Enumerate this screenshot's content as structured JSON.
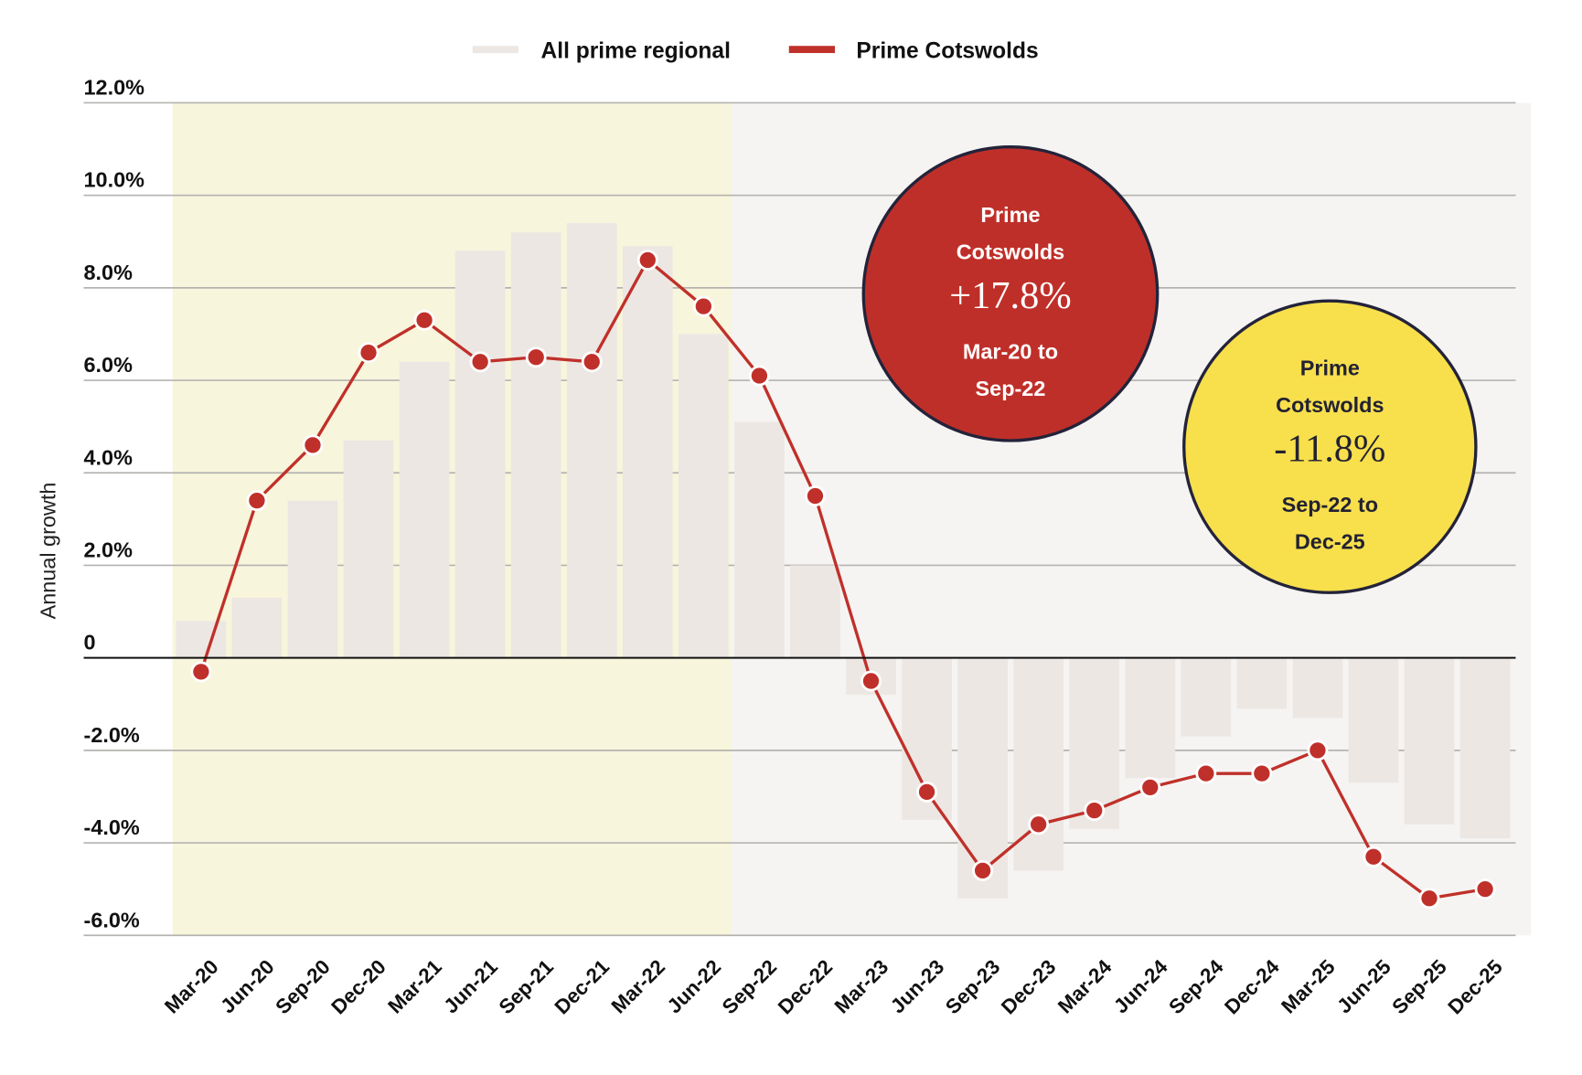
{
  "chart_data": {
    "type": "bar+line",
    "title": "",
    "xlabel": "",
    "ylabel": "Annual growth",
    "ylim": [
      -6,
      12
    ],
    "y_ticks": [
      12,
      10,
      8,
      6,
      4,
      2,
      0,
      -2,
      -4,
      -6
    ],
    "y_tick_labels": [
      "12.0%",
      "10.0%",
      "8.0%",
      "6.0%",
      "4.0%",
      "2.0%",
      "0",
      "-2.0%",
      "-4.0%",
      "-6.0%"
    ],
    "grid": true,
    "legend_position": "top-center",
    "categories": [
      "Mar-20",
      "Jun-20",
      "Sep-20",
      "Dec-20",
      "Mar-21",
      "Jun-21",
      "Sep-21",
      "Dec-21",
      "Mar-22",
      "Jun-22",
      "Sep-22",
      "Dec-22",
      "Mar-23",
      "Jun-23",
      "Sep-23",
      "Dec-23",
      "Mar-24",
      "Jun-24",
      "Sep-24",
      "Dec-24",
      "Mar-25",
      "Jun-25",
      "Sep-25",
      "Dec-25"
    ],
    "series": [
      {
        "name": "All prime regional",
        "type": "bar",
        "color": "#ece7e3",
        "values": [
          0.8,
          1.3,
          3.4,
          4.7,
          6.4,
          8.8,
          9.2,
          9.4,
          8.9,
          7.0,
          5.1,
          2.0,
          -0.8,
          -3.5,
          -5.2,
          -4.6,
          -3.7,
          -2.6,
          -1.7,
          -1.1,
          -1.3,
          -2.7,
          -3.6,
          -3.9
        ]
      },
      {
        "name": "Prime Cotswolds",
        "type": "line",
        "color": "#c0302a",
        "values": [
          -0.3,
          3.4,
          4.6,
          6.6,
          7.3,
          6.4,
          6.5,
          6.4,
          8.6,
          7.6,
          6.1,
          3.5,
          -0.5,
          -2.9,
          -4.6,
          -3.6,
          -3.3,
          -2.8,
          -2.5,
          -2.5,
          -2.0,
          -4.3,
          -5.2,
          -5.0
        ]
      }
    ],
    "shaded_periods": [
      {
        "from": "Mar-20",
        "to": "Jun-22",
        "color": "#f7f5dc"
      },
      {
        "from": "Sep-22",
        "to": "Dec-25",
        "color": "#f5f4f2"
      }
    ],
    "annotations": [
      {
        "lines": [
          "Prime",
          "Cotswolds",
          "+17.8%",
          "Mar-20 to",
          "Sep-22"
        ],
        "fill": "#bf2f29",
        "text_color": "#ffffff"
      },
      {
        "lines": [
          "Prime",
          "Cotswolds",
          "-11.8%",
          "Sep-22 to",
          "Dec-25"
        ],
        "fill": "#f8df4c",
        "text_color": "#222233"
      }
    ]
  }
}
